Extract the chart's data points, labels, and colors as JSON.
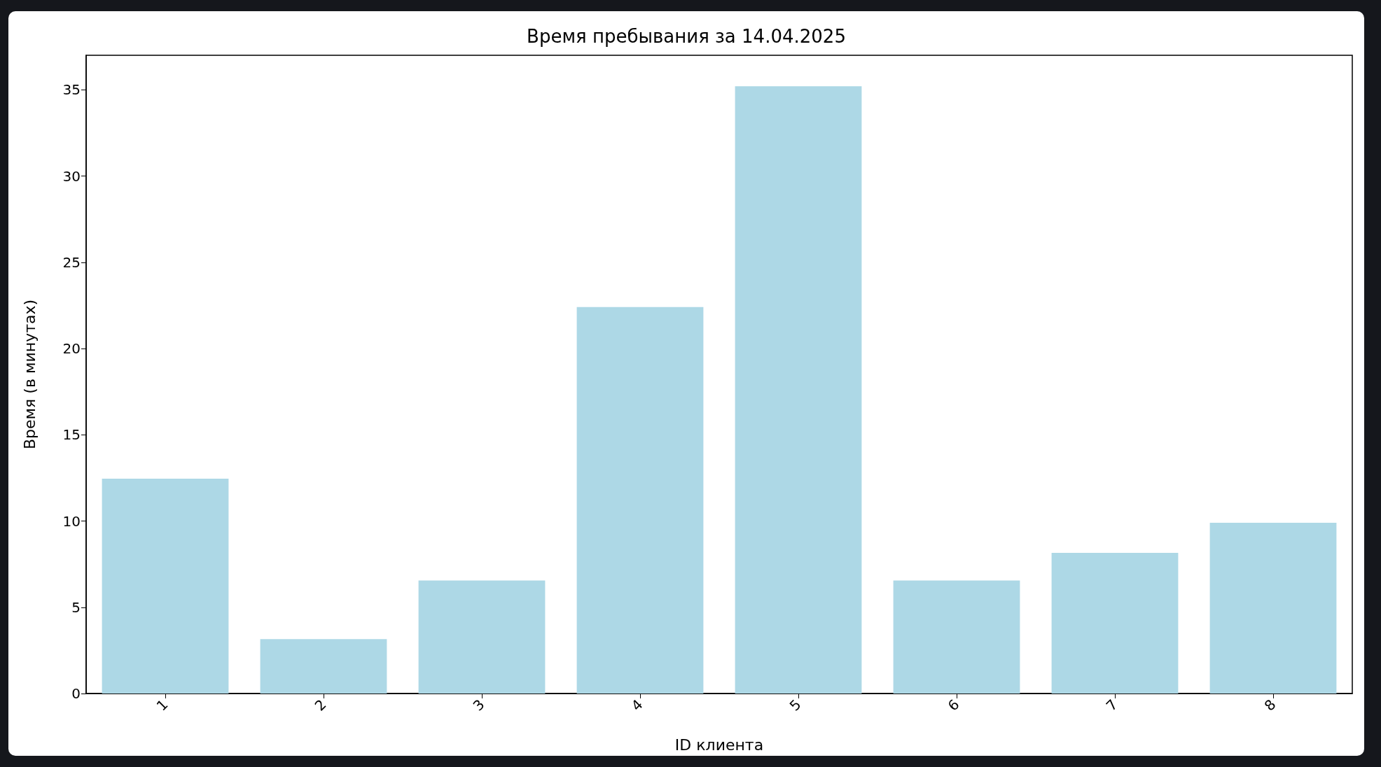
{
  "chart_data": {
    "type": "bar",
    "title": "Время пребывания за 14.04.2025",
    "xlabel": "ID клиента",
    "ylabel": "Время (в минутах)",
    "categories": [
      "1",
      "2",
      "3",
      "4",
      "5",
      "6",
      "7",
      "8"
    ],
    "values": [
      12.45,
      3.15,
      6.55,
      22.4,
      35.2,
      6.55,
      8.15,
      9.9
    ],
    "color": "#add8e6",
    "ylim": [
      0,
      37
    ],
    "yticks": [
      0,
      5,
      10,
      15,
      20,
      25,
      30,
      35
    ]
  }
}
